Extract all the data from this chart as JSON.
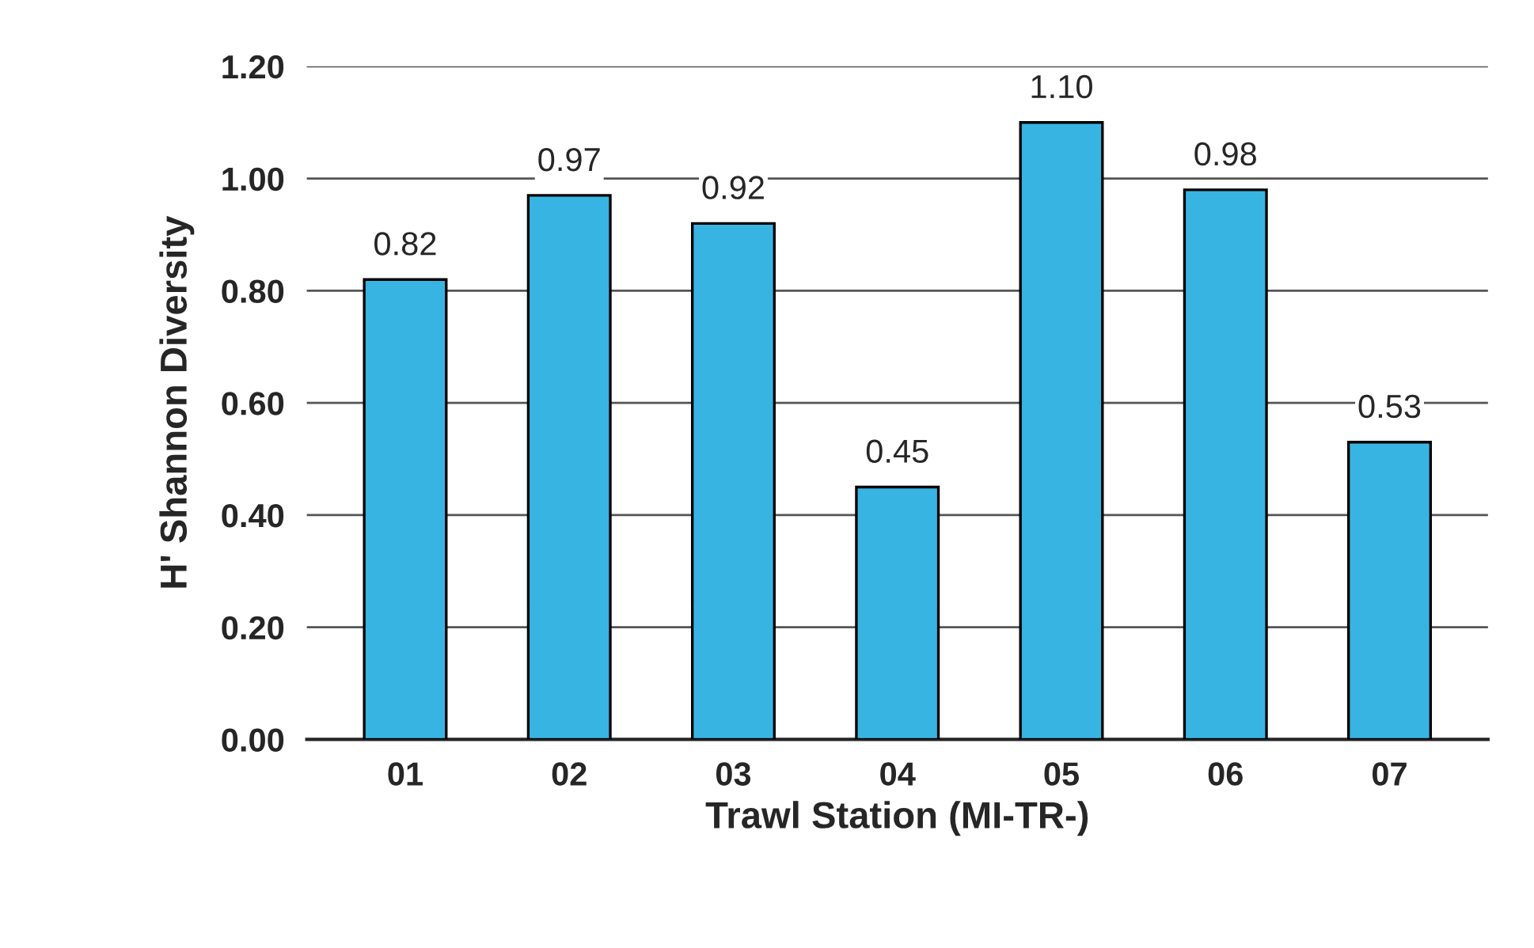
{
  "chart_data": {
    "type": "bar",
    "xlabel": "Trawl Station (MI-TR-)",
    "ylabel": "H' Shannon Diversity",
    "categories": [
      "01",
      "02",
      "03",
      "04",
      "05",
      "06",
      "07"
    ],
    "values": [
      0.82,
      0.97,
      0.92,
      0.45,
      1.1,
      0.98,
      0.53
    ],
    "value_labels": [
      "0.82",
      "0.97",
      "0.92",
      "0.45",
      "1.10",
      "0.98",
      "0.53"
    ],
    "color": "#38b4e3",
    "ylim": [
      0,
      1.2
    ],
    "yticks": [
      {
        "value": 0,
        "label": "0.00"
      },
      {
        "value": 0.2,
        "label": "0.20"
      },
      {
        "value": 0.4,
        "label": "0.40"
      },
      {
        "value": 0.6,
        "label": "0.60"
      },
      {
        "value": 0.8,
        "label": "0.80"
      },
      {
        "value": 1.0,
        "label": "1.00"
      },
      {
        "value": 1.2,
        "label": "1.20"
      }
    ],
    "grid": "y"
  }
}
